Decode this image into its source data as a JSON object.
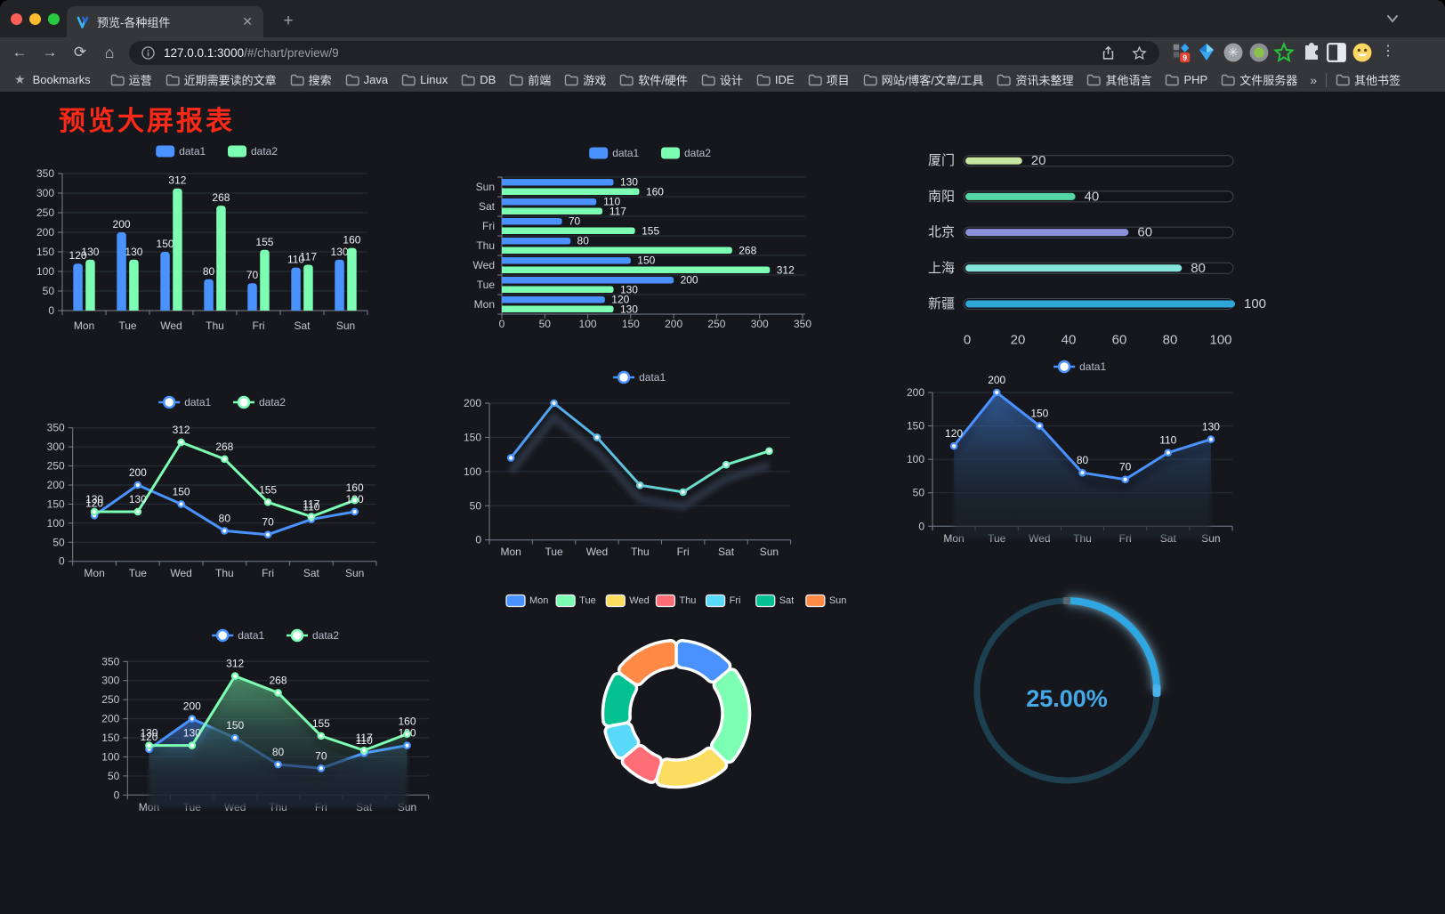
{
  "browser": {
    "tab": {
      "title": "预览-各种组件"
    },
    "url": {
      "host": "127.0.0.1:3000",
      "path": "/#/chart/preview/9"
    },
    "bookmarks_bar": {
      "star_label": "Bookmarks",
      "folders": [
        "运营",
        "近期需要读的文章",
        "搜索",
        "Java",
        "Linux",
        "DB",
        "前端",
        "游戏",
        "软件/硬件",
        "设计",
        "IDE",
        "项目",
        "网站/博客/文章/工具",
        "资讯未整理",
        "其他语言",
        "PHP",
        "文件服务器"
      ],
      "overflow": "»",
      "other_bookmarks": "其他书签"
    },
    "extension_badge": "9"
  },
  "page": {
    "title": "预览大屏报表"
  },
  "chart_data": [
    {
      "id": "bar-vertical",
      "type": "bar",
      "categories": [
        "Mon",
        "Tue",
        "Wed",
        "Thu",
        "Fri",
        "Sat",
        "Sun"
      ],
      "series": [
        {
          "name": "data1",
          "color": "#4992ff",
          "values": [
            120,
            200,
            150,
            80,
            70,
            110,
            130
          ]
        },
        {
          "name": "data2",
          "color": "#7cffb2",
          "values": [
            130,
            130,
            312,
            268,
            155,
            117,
            160
          ]
        }
      ],
      "ylim": [
        0,
        350
      ],
      "ystep": 50
    },
    {
      "id": "bar-horizontal",
      "type": "bar-horizontal",
      "categories": [
        "Mon",
        "Tue",
        "Wed",
        "Thu",
        "Fri",
        "Sat",
        "Sun"
      ],
      "series": [
        {
          "name": "data1",
          "color": "#4992ff",
          "values": [
            120,
            200,
            150,
            80,
            70,
            110,
            130
          ]
        },
        {
          "name": "data2",
          "color": "#7cffb2",
          "values": [
            130,
            130,
            312,
            268,
            155,
            117,
            160
          ]
        }
      ],
      "xlim": [
        0,
        350
      ],
      "xstep": 50
    },
    {
      "id": "progress-bars",
      "type": "progress",
      "categories": [
        "厦门",
        "南阳",
        "北京",
        "上海",
        "新疆"
      ],
      "values": [
        20,
        40,
        60,
        80,
        100
      ],
      "colors": [
        "#c8e6a0",
        "#55d7a5",
        "#8b90da",
        "#85e5dd",
        "#2ea6da"
      ],
      "xlim": [
        0,
        100
      ],
      "xstep": 20
    },
    {
      "id": "line-basic",
      "type": "line",
      "categories": [
        "Mon",
        "Tue",
        "Wed",
        "Thu",
        "Fri",
        "Sat",
        "Sun"
      ],
      "series": [
        {
          "name": "data1",
          "color": "#4992ff",
          "values": [
            120,
            200,
            150,
            80,
            70,
            110,
            130
          ]
        },
        {
          "name": "data2",
          "color": "#7cffb2",
          "values": [
            130,
            130,
            312,
            268,
            155,
            117,
            160
          ]
        }
      ],
      "ylim": [
        0,
        350
      ],
      "ystep": 50
    },
    {
      "id": "line-gradient",
      "type": "line",
      "categories": [
        "Mon",
        "Tue",
        "Wed",
        "Thu",
        "Fri",
        "Sat",
        "Sun"
      ],
      "series": [
        {
          "name": "data1",
          "color": "#4992ff",
          "color2": "#7cffb2",
          "gradient": true,
          "shadow": true,
          "values": [
            120,
            200,
            150,
            80,
            70,
            110,
            130
          ]
        }
      ],
      "ylim": [
        0,
        200
      ],
      "ystep": 50,
      "show_labels": false
    },
    {
      "id": "area-basic",
      "type": "area",
      "categories": [
        "Mon",
        "Tue",
        "Wed",
        "Thu",
        "Fri",
        "Sat",
        "Sun"
      ],
      "series": [
        {
          "name": "data1",
          "color": "#4992ff",
          "area": true,
          "shadow": true,
          "values": [
            120,
            200,
            150,
            80,
            70,
            110,
            130
          ]
        }
      ],
      "ylim": [
        0,
        200
      ],
      "ystep": 50
    },
    {
      "id": "area-double",
      "type": "area",
      "categories": [
        "Mon",
        "Tue",
        "Wed",
        "Thu",
        "Fri",
        "Sat",
        "Sun"
      ],
      "series": [
        {
          "name": "data1",
          "color": "#4992ff",
          "area": true,
          "shadow": true,
          "values": [
            120,
            200,
            150,
            80,
            70,
            110,
            130
          ]
        },
        {
          "name": "data2",
          "color": "#7cffb2",
          "area": true,
          "shadow": true,
          "values": [
            130,
            130,
            312,
            268,
            155,
            117,
            160
          ]
        }
      ],
      "ylim": [
        0,
        350
      ],
      "ystep": 50
    },
    {
      "id": "donut",
      "type": "pie",
      "labels": [
        "Mon",
        "Tue",
        "Wed",
        "Thu",
        "Fri",
        "Sat",
        "Sun"
      ],
      "values": [
        120,
        200,
        150,
        80,
        70,
        110,
        130
      ],
      "colors": [
        "#4992ff",
        "#7cffb2",
        "#fddd60",
        "#ff6e76",
        "#58d9f9",
        "#05c091",
        "#ff8a45"
      ]
    },
    {
      "id": "gauge",
      "type": "gauge",
      "label": "25.00%",
      "percent": 25,
      "color": "#2ea7e2"
    }
  ]
}
